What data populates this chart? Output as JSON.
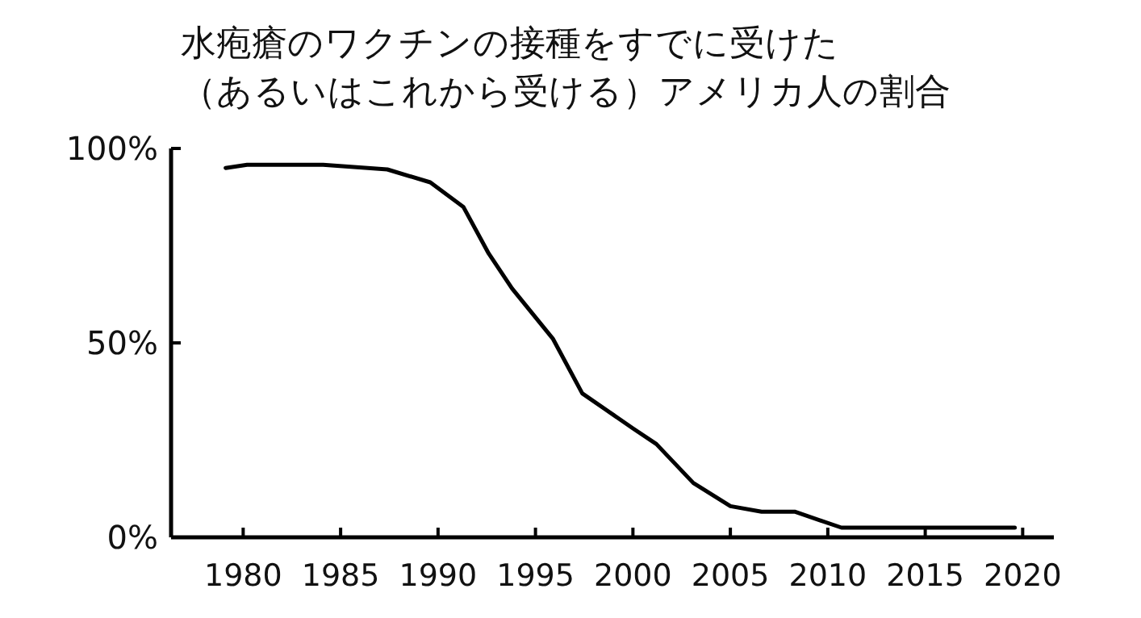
{
  "chart_data": {
    "type": "line",
    "title": "水疱瘡のワクチンの接種をすでに受けた",
    "subtitle": "（あるいはこれから受ける）アメリカ人の割合",
    "xlim": [
      1976.3,
      2021.6
    ],
    "ylim": [
      0,
      100
    ],
    "xticks": [
      1980,
      1985,
      1990,
      1995,
      2000,
      2005,
      2010,
      2015,
      2020
    ],
    "yticks": [
      {
        "value": 0,
        "label": "0%"
      },
      {
        "value": 50,
        "label": "50%"
      },
      {
        "value": 100,
        "label": "100%"
      }
    ],
    "series": [
      {
        "color": "#000000",
        "x": [
          1979.1,
          1980.2,
          1984.1,
          1987.4,
          1989.6,
          1991.3,
          1992.6,
          1993.8,
          1995.9,
          1997.4,
          2000.0,
          2001.2,
          2003.1,
          2005.0,
          2006.6,
          2008.3,
          2010.7,
          2014.9,
          2019.6
        ],
        "values": [
          95,
          95.8,
          95.8,
          94.6,
          91.3,
          85,
          73,
          64,
          51,
          37,
          28,
          24,
          14,
          8,
          6.6,
          6.6,
          2.5,
          2.5,
          2.5
        ]
      }
    ]
  }
}
